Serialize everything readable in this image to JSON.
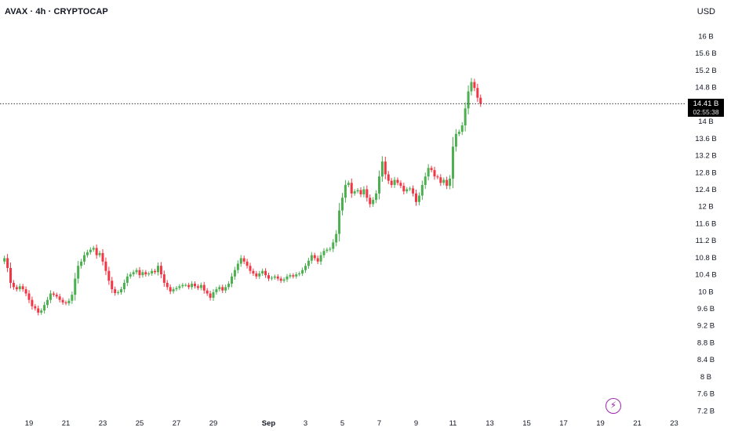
{
  "header": {
    "title": "AVAX · 4h · CRYPTOCAP",
    "currency": "USD"
  },
  "last_price": {
    "value": 14.41,
    "label": "14.41 B",
    "countdown": "02:55:38"
  },
  "icons": {
    "flash": "lightning-icon"
  },
  "colors": {
    "up": "#4caf50",
    "down": "#f23645",
    "last_line": "#131722"
  },
  "chart_data": {
    "type": "candlestick",
    "title": "",
    "ylabel": "",
    "xlabel": "",
    "unit": "B",
    "ylim": [
      7.2,
      16.4
    ],
    "y_ticks": [
      "16 B",
      "15.6 B",
      "15.2 B",
      "14.8 B",
      "14 B",
      "13.6 B",
      "13.2 B",
      "12.8 B",
      "12.4 B",
      "12 B",
      "11.6 B",
      "11.2 B",
      "10.8 B",
      "10.4 B",
      "10 B",
      "9.6 B",
      "9.2 B",
      "8.8 B",
      "8.4 B",
      "8 B",
      "7.6 B",
      "7.2 B"
    ],
    "x_ticks": [
      "19",
      "21",
      "23",
      "25",
      "27",
      "29",
      "Sep",
      "3",
      "5",
      "7",
      "9",
      "11",
      "13",
      "15",
      "17",
      "19",
      "21",
      "23"
    ],
    "x_tick_days": [
      19,
      21,
      23,
      25,
      27,
      29,
      32,
      34,
      36,
      38,
      40,
      42,
      44,
      46,
      48,
      50,
      52,
      54
    ],
    "x_start_day": 17.5,
    "candles_per_day": 6,
    "closes": [
      10.7,
      10.78,
      10.55,
      10.2,
      10.1,
      10.05,
      10.12,
      10.05,
      9.95,
      9.8,
      9.65,
      9.6,
      9.5,
      9.55,
      9.68,
      9.8,
      9.95,
      9.92,
      9.88,
      9.8,
      9.74,
      9.72,
      9.78,
      9.92,
      10.3,
      10.6,
      10.7,
      10.85,
      10.92,
      10.98,
      11.02,
      10.85,
      10.9,
      10.7,
      10.48,
      10.25,
      10.05,
      9.96,
      9.98,
      10.05,
      10.2,
      10.35,
      10.4,
      10.45,
      10.5,
      10.38,
      10.45,
      10.4,
      10.42,
      10.48,
      10.45,
      10.6,
      10.4,
      10.2,
      10.1,
      10.0,
      10.05,
      10.08,
      10.12,
      10.15,
      10.15,
      10.1,
      10.18,
      10.12,
      10.08,
      10.15,
      10.02,
      9.95,
      9.85,
      9.98,
      10.05,
      10.1,
      10.02,
      10.1,
      10.18,
      10.35,
      10.5,
      10.65,
      10.78,
      10.7,
      10.6,
      10.48,
      10.42,
      10.35,
      10.42,
      10.48,
      10.38,
      10.3,
      10.32,
      10.35,
      10.3,
      10.25,
      10.28,
      10.35,
      10.38,
      10.35,
      10.4,
      10.42,
      10.5,
      10.6,
      10.72,
      10.85,
      10.78,
      10.7,
      10.85,
      10.95,
      10.98,
      11.0,
      11.15,
      11.35,
      11.9,
      12.2,
      12.5,
      12.55,
      12.3,
      12.35,
      12.38,
      12.28,
      12.4,
      12.2,
      12.05,
      12.15,
      12.3,
      12.7,
      13.05,
      12.75,
      12.6,
      12.5,
      12.62,
      12.55,
      12.48,
      12.35,
      12.4,
      12.42,
      12.3,
      12.1,
      12.25,
      12.5,
      12.7,
      12.9,
      12.85,
      12.7,
      12.68,
      12.55,
      12.62,
      12.48,
      12.65,
      13.4,
      13.7,
      13.75,
      13.9,
      14.3,
      14.7,
      14.92,
      14.78,
      14.55,
      14.41
    ]
  }
}
